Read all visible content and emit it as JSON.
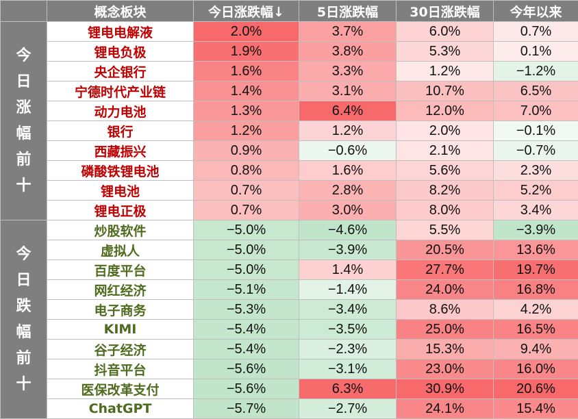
{
  "headers": [
    "概念板块",
    "今日涨跌幅↓",
    "5日涨跌幅",
    "30日涨跌幅",
    "今年以来"
  ],
  "groups": [
    {
      "label": "今日涨幅前十",
      "trend": "up",
      "rows": [
        {
          "name": "锂电电解液",
          "d1": "2.0%",
          "d5": "3.7%",
          "d30": "6.0%",
          "ytd": "0.7%"
        },
        {
          "name": "锂电负极",
          "d1": "1.9%",
          "d5": "3.8%",
          "d30": "5.3%",
          "ytd": "0.1%"
        },
        {
          "name": "央企银行",
          "d1": "1.6%",
          "d5": "3.3%",
          "d30": "1.2%",
          "ytd": "−1.2%"
        },
        {
          "name": "宁德时代产业链",
          "d1": "1.4%",
          "d5": "3.1%",
          "d30": "10.7%",
          "ytd": "6.5%"
        },
        {
          "name": "动力电池",
          "d1": "1.3%",
          "d5": "6.4%",
          "d30": "12.0%",
          "ytd": "7.0%"
        },
        {
          "name": "银行",
          "d1": "1.2%",
          "d5": "1.2%",
          "d30": "2.0%",
          "ytd": "−0.1%"
        },
        {
          "name": "西藏振兴",
          "d1": "0.9%",
          "d5": "−0.6%",
          "d30": "2.1%",
          "ytd": "−0.7%"
        },
        {
          "name": "磷酸铁锂电池",
          "d1": "0.8%",
          "d5": "1.6%",
          "d30": "5.6%",
          "ytd": "2.3%"
        },
        {
          "name": "锂电池",
          "d1": "0.7%",
          "d5": "2.8%",
          "d30": "8.2%",
          "ytd": "5.2%"
        },
        {
          "name": "锂电正极",
          "d1": "0.7%",
          "d5": "3.0%",
          "d30": "8.0%",
          "ytd": "3.4%"
        }
      ]
    },
    {
      "label": "今日跌幅前十",
      "trend": "down",
      "rows": [
        {
          "name": "炒股软件",
          "d1": "−5.0%",
          "d5": "−4.6%",
          "d30": "5.5%",
          "ytd": "−3.9%"
        },
        {
          "name": "虚拟人",
          "d1": "−5.0%",
          "d5": "−3.9%",
          "d30": "20.5%",
          "ytd": "13.6%"
        },
        {
          "name": "百度平台",
          "d1": "−5.0%",
          "d5": "1.4%",
          "d30": "27.7%",
          "ytd": "19.7%"
        },
        {
          "name": "网红经济",
          "d1": "−5.1%",
          "d5": "−1.4%",
          "d30": "24.0%",
          "ytd": "16.8%"
        },
        {
          "name": "电子商务",
          "d1": "−5.3%",
          "d5": "−3.4%",
          "d30": "8.6%",
          "ytd": "4.2%"
        },
        {
          "name": "KIMI",
          "d1": "−5.4%",
          "d5": "−3.5%",
          "d30": "25.0%",
          "ytd": "16.5%"
        },
        {
          "name": "谷子经济",
          "d1": "−5.4%",
          "d5": "−2.3%",
          "d30": "15.3%",
          "ytd": "9.4%"
        },
        {
          "name": "抖音平台",
          "d1": "−5.6%",
          "d5": "−3.1%",
          "d30": "23.0%",
          "ytd": "16.0%"
        },
        {
          "name": "医保改革支付",
          "d1": "−5.6%",
          "d5": "6.3%",
          "d30": "30.9%",
          "ytd": "20.6%"
        },
        {
          "name": "ChatGPT",
          "d1": "−5.7%",
          "d5": "−2.7%",
          "d30": "24.1%",
          "ytd": "15.4%"
        }
      ]
    }
  ],
  "colors": {
    "header_bg": "#7f7f7f",
    "up_text": "#c00000",
    "down_text": "#4e6b1e",
    "positive_max": "#f8696b",
    "negative_max": "#63be7b"
  }
}
